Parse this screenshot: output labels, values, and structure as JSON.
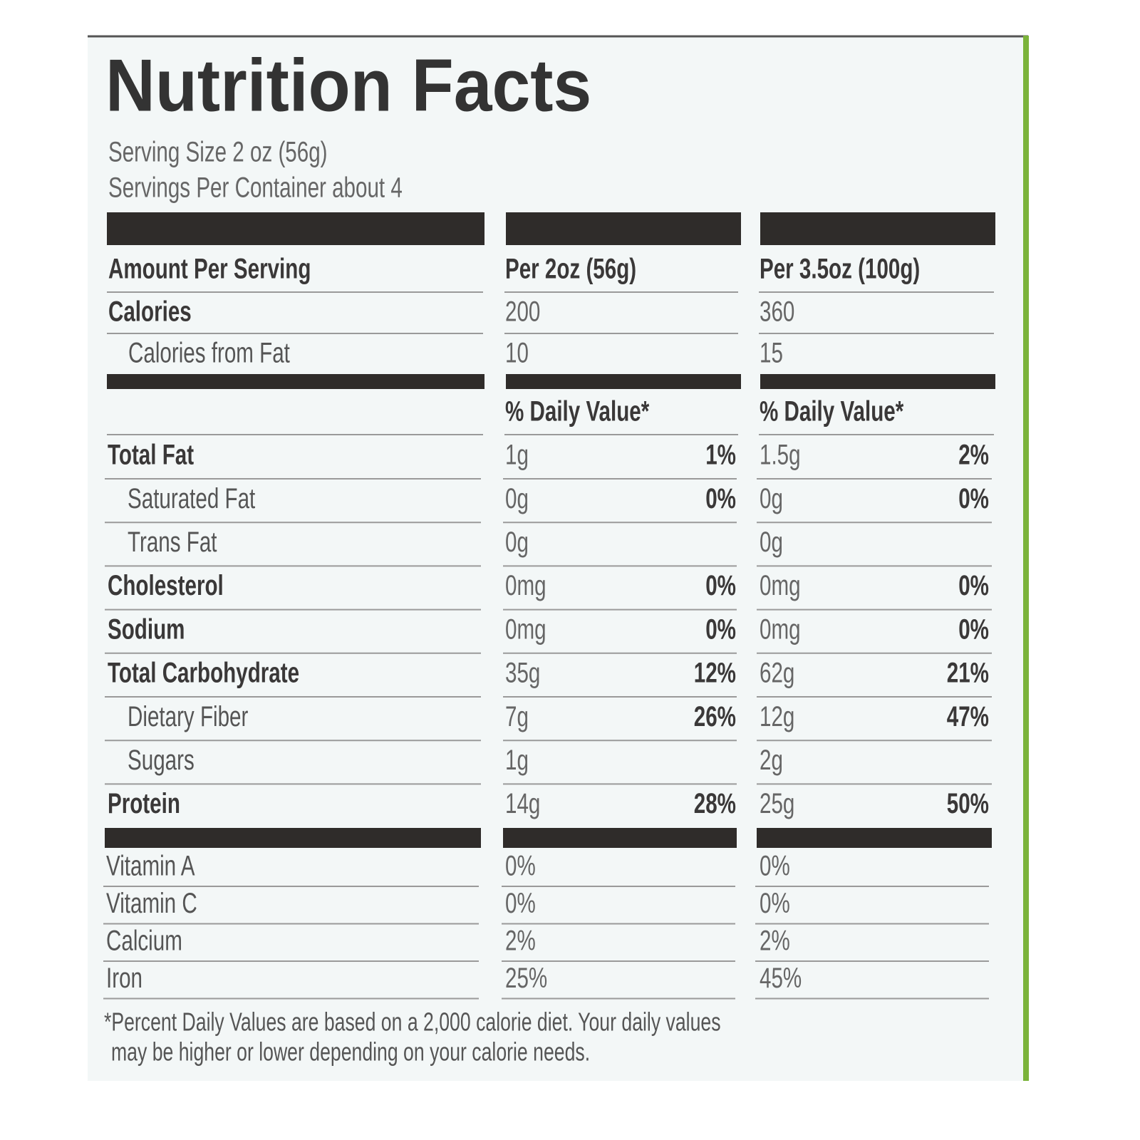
{
  "title": "Nutrition Facts",
  "serving_size": "Serving Size 2 oz (56g)",
  "servings_per_container": "Servings Per Container about 4",
  "header": {
    "label": "Amount Per Serving",
    "col1": "Per 2oz (56g)",
    "col2": "Per 3.5oz (100g)"
  },
  "calories": {
    "label": "Calories",
    "col1": "200",
    "col2": "360"
  },
  "calories_from_fat": {
    "label": "Calories from Fat",
    "col1": "10",
    "col2": "15"
  },
  "daily_value": {
    "col1": "% Daily Value*",
    "col2": "% Daily Value*"
  },
  "nutrients": [
    {
      "label": "Total Fat",
      "amount1": "1g",
      "dv1": "1%",
      "amount2": "1.5g",
      "dv2": "2%",
      "sub_items": [
        {
          "label": "Saturated Fat",
          "amount1": "0g",
          "dv1": "0%",
          "amount2": "0g",
          "dv2": "0%"
        },
        {
          "label": "Trans Fat",
          "amount1": "0g",
          "amount2": "0g"
        }
      ]
    },
    {
      "label": "Cholesterol",
      "amount1": "0mg",
      "dv1": "0%",
      "amount2": "0mg",
      "dv2": "0%"
    },
    {
      "label": "Sodium",
      "amount1": "0mg",
      "dv1": "0%",
      "amount2": "0mg",
      "dv2": "0%"
    },
    {
      "label": "Total Carbohydrate",
      "amount1": "35g",
      "dv1": "12%",
      "amount2": "62g",
      "dv2": "21%",
      "sub_items": [
        {
          "label": "Dietary Fiber",
          "amount1": "7g",
          "dv1": "26%",
          "amount2": "12g",
          "dv2": "47%"
        },
        {
          "label": "Sugars",
          "amount1": "1g",
          "amount2": "2g"
        }
      ]
    },
    {
      "label": "Protein",
      "amount1": "14g",
      "dv1": "28%",
      "amount2": "25g",
      "dv2": "50%"
    }
  ],
  "vitamins": [
    {
      "label": "Vitamin A",
      "col1": "0%",
      "col2": "0%"
    },
    {
      "label": "Vitamin C",
      "col1": "0%",
      "col2": "0%"
    },
    {
      "label": "Calcium",
      "col1": "2%",
      "col2": "2%"
    },
    {
      "label": "Iron",
      "col1": "25%",
      "col2": "45%"
    }
  ],
  "footnote": [
    "*Percent Daily Values are based on a 2,000 calorie diet. Your daily values",
    "may be higher or lower depending on your calorie needs."
  ]
}
